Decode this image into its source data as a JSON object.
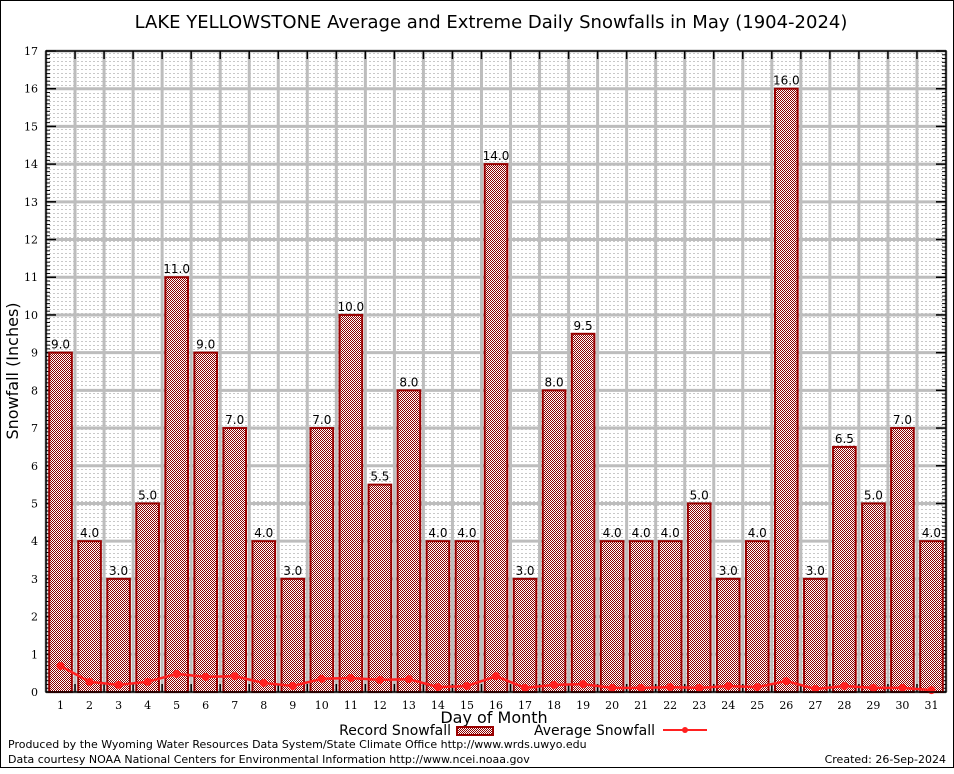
{
  "chart_data": {
    "type": "bar",
    "title": "LAKE YELLOWSTONE Average and Extreme Daily Snowfalls in May (1904-2024)",
    "xlabel": "Day of Month",
    "ylabel": "Snowfall (Inches)",
    "ylim": [
      0,
      17
    ],
    "yticks": [
      0,
      1,
      2,
      3,
      4,
      5,
      6,
      7,
      8,
      9,
      10,
      11,
      12,
      13,
      14,
      15,
      16,
      17
    ],
    "grid": true,
    "categories": [
      "1",
      "2",
      "3",
      "4",
      "5",
      "6",
      "7",
      "8",
      "9",
      "10",
      "11",
      "12",
      "13",
      "14",
      "15",
      "16",
      "17",
      "18",
      "19",
      "20",
      "21",
      "22",
      "23",
      "24",
      "25",
      "26",
      "27",
      "28",
      "29",
      "30",
      "31"
    ],
    "series": [
      {
        "name": "Record Snowfall",
        "kind": "bar",
        "color": "#990000",
        "values": [
          9.0,
          4.0,
          3.0,
          5.0,
          11.0,
          9.0,
          7.0,
          4.0,
          3.0,
          7.0,
          10.0,
          5.5,
          8.0,
          4.0,
          4.0,
          14.0,
          3.0,
          8.0,
          9.5,
          4.0,
          4.0,
          4.0,
          5.0,
          3.0,
          4.0,
          16.0,
          3.0,
          6.5,
          5.0,
          7.0,
          4.0
        ],
        "labels": [
          "9.0",
          "4.0",
          "3.0",
          "5.0",
          "11.0",
          "9.0",
          "7.0",
          "4.0",
          "3.0",
          "7.0",
          "10.0",
          "5.5",
          "8.0",
          "4.0",
          "4.0",
          "14.0",
          "3.0",
          "8.0",
          "9.5",
          "4.0",
          "4.0",
          "4.0",
          "5.0",
          "3.0",
          "4.0",
          "16.0",
          "3.0",
          "6.5",
          "5.0",
          "7.0",
          "4.0"
        ]
      },
      {
        "name": "Average Snowfall",
        "kind": "line",
        "color": "#ff2020",
        "values": [
          0.69,
          0.27,
          0.19,
          0.27,
          0.48,
          0.4,
          0.42,
          0.24,
          0.16,
          0.35,
          0.37,
          0.32,
          0.34,
          0.13,
          0.16,
          0.42,
          0.11,
          0.19,
          0.21,
          0.11,
          0.11,
          0.13,
          0.11,
          0.16,
          0.13,
          0.29,
          0.08,
          0.16,
          0.11,
          0.11,
          0.05
        ]
      }
    ],
    "legend": {
      "position": "bottom-center",
      "items": [
        "Record Snowfall",
        "Average Snowfall"
      ]
    }
  },
  "footer": {
    "line1": "Produced by the Wyoming Water Resources Data System/State Climate Office http://www.wrds.uwyo.edu",
    "line2": "Data courtesy NOAA National Centers for Environmental Information http://www.ncei.noaa.gov",
    "created": "Created: 26-Sep-2024"
  }
}
